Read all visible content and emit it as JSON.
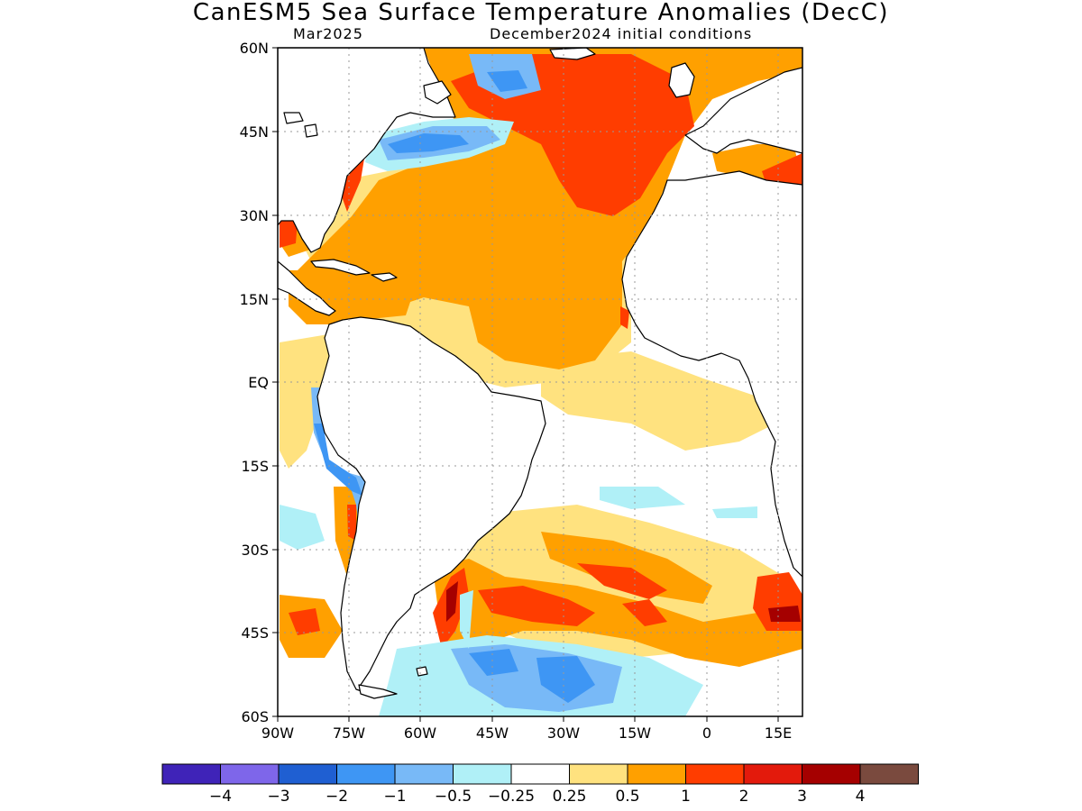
{
  "title": "CanESM5 Sea Surface Temperature Anomalies (DecC)",
  "subtitle_left": "Mar2025",
  "subtitle_right": "December2024 initial conditions",
  "map": {
    "lon_range": [
      -90,
      20
    ],
    "lat_range": [
      -60,
      60
    ],
    "lat_ticks": [
      "60N",
      "45N",
      "30N",
      "15N",
      "EQ",
      "15S",
      "30S",
      "45S",
      "60S"
    ],
    "lon_ticks": [
      "90W",
      "75W",
      "60W",
      "45W",
      "30W",
      "15W",
      "0",
      "15E"
    ],
    "grid": "dotted gray"
  },
  "colorbar": {
    "colors": [
      "#3f23b8",
      "#7e66ea",
      "#1f5fd2",
      "#3e96f4",
      "#78b9f7",
      "#b0f0f7",
      "#ffffff",
      "#ffe27f",
      "#ffa000",
      "#ff3d00",
      "#e31a0c",
      "#a50000",
      "#7a4a3e"
    ],
    "labels": [
      "-4",
      "-3",
      "-2",
      "-1",
      "-0.5",
      "-0.25",
      "0.25",
      "0.5",
      "1",
      "2",
      "3",
      "4"
    ]
  }
}
